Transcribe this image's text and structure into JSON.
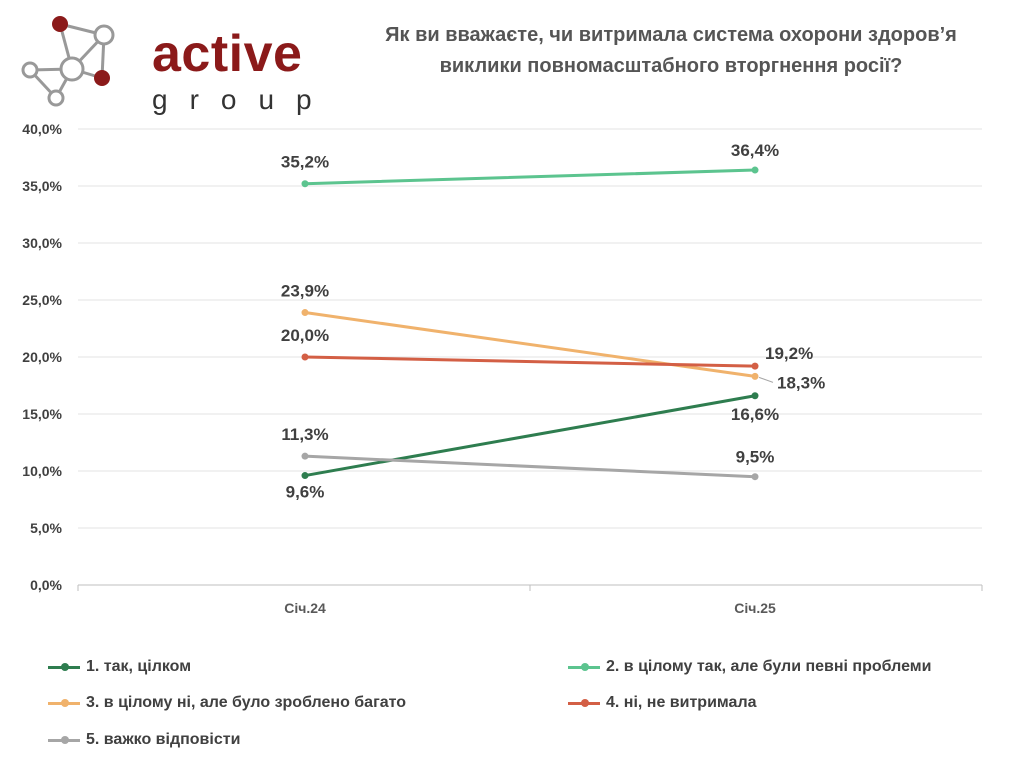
{
  "header": {
    "logo_text": "active",
    "logo_subtext": "group",
    "title_line1": "Як ви вважаєте, чи витримала система охорони здоров’я",
    "title_line2": "виклики повномасштабного вторгнення росії?"
  },
  "chart_data": {
    "type": "line",
    "categories": [
      "Січ.24",
      "Січ.25"
    ],
    "ylim": [
      0,
      40
    ],
    "yticks": [
      "0,0%",
      "5,0%",
      "10,0%",
      "15,0%",
      "20,0%",
      "25,0%",
      "30,0%",
      "35,0%",
      "40,0%"
    ],
    "grid": true,
    "legend_position": "bottom",
    "series": [
      {
        "name": "1. так, цілком",
        "values": [
          9.6,
          16.6
        ],
        "labels": [
          "9,6%",
          "16,6%"
        ],
        "color": "#2e7d4f"
      },
      {
        "name": "2. в цілому так, але були певні проблеми",
        "values": [
          35.2,
          36.4
        ],
        "labels": [
          "35,2%",
          "36,4%"
        ],
        "color": "#5cc48f"
      },
      {
        "name": "3. в цілому ні, але було зроблено багато",
        "values": [
          23.9,
          18.3
        ],
        "labels": [
          "23,9%",
          "18,3%"
        ],
        "color": "#f0b26c"
      },
      {
        "name": "4. ні, не витримала",
        "values": [
          20.0,
          19.2
        ],
        "labels": [
          "20,0%",
          "19,2%"
        ],
        "color": "#d35f45"
      },
      {
        "name": "5. важко відповісти",
        "values": [
          11.3,
          9.5
        ],
        "labels": [
          "11,3%",
          "9,5%"
        ],
        "color": "#a6a6a6"
      }
    ]
  }
}
